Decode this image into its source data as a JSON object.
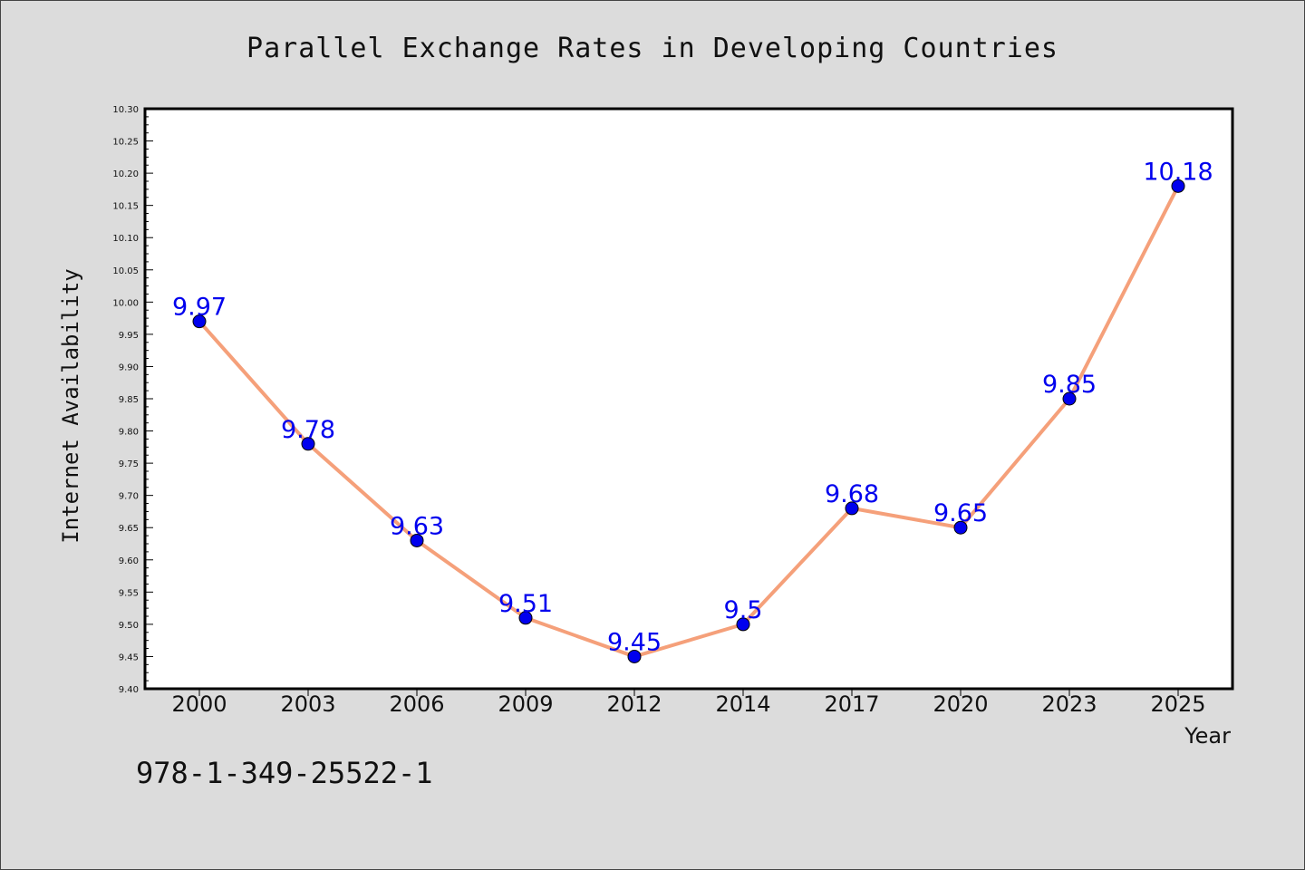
{
  "chart_data": {
    "type": "line",
    "title": "Parallel Exchange Rates in Developing Countries",
    "xlabel": "Year",
    "ylabel": "Internet Availability",
    "categories": [
      "2000",
      "2003",
      "2006",
      "2009",
      "2012",
      "2014",
      "2017",
      "2020",
      "2023",
      "2025"
    ],
    "series": [
      {
        "values": [
          9.97,
          9.78,
          9.63,
          9.51,
          9.45,
          9.5,
          9.68,
          9.65,
          9.85,
          10.18
        ],
        "data_labels": [
          "9.97",
          "9.78",
          "9.63",
          "9.51",
          "9.45",
          "9.5",
          "9.68",
          "9.65",
          "9.85",
          "10.18"
        ],
        "line_color": "#f5a07a",
        "marker_color": "#0000ee"
      }
    ],
    "ylim": [
      9.4,
      10.3
    ],
    "yticks": [
      "9.40",
      "9.45",
      "9.50",
      "9.55",
      "9.60",
      "9.65",
      "9.70",
      "9.75",
      "9.80",
      "9.85",
      "9.90",
      "9.95",
      "10.00",
      "10.05",
      "10.10",
      "10.15",
      "10.20",
      "10.25",
      "10.30"
    ],
    "grid": false,
    "legend": "none"
  },
  "annotation": "978-1-349-25522-1",
  "colors": {
    "background": "#dcdcdc",
    "plot_background": "#ffffff",
    "line": "#f5a07a",
    "marker": "#0000ee",
    "data_label": "#0000ee"
  }
}
